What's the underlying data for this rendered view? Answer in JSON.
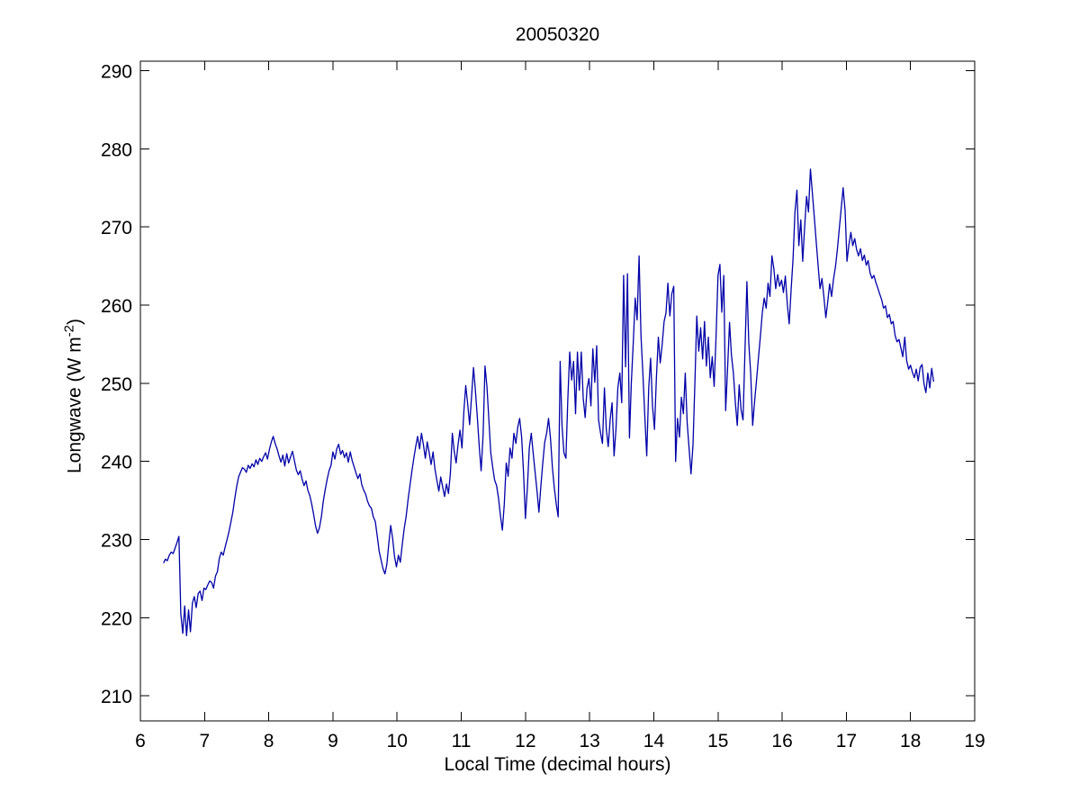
{
  "figure": {
    "background": "#ffffff",
    "axis_color": "#000000"
  },
  "chart_data": {
    "type": "line",
    "title": "20050320",
    "xlabel": "Local Time (decimal hours)",
    "ylabel": "Longwave (W m^-2)",
    "ylabel_parts": {
      "main": "Longwave (W m",
      "sup": "-2",
      "end": ")"
    },
    "xlim": [
      6,
      19
    ],
    "ylim": [
      206.8,
      291.2
    ],
    "xticks": [
      6,
      7,
      8,
      9,
      10,
      11,
      12,
      13,
      14,
      15,
      16,
      17,
      18,
      19
    ],
    "yticks": [
      210,
      220,
      230,
      240,
      250,
      260,
      270,
      280,
      290
    ],
    "grid": false,
    "legend": null,
    "line_color": "#0000A8",
    "series": [
      {
        "name": "longwave",
        "x0": 6.36,
        "dx": 0.03,
        "values": [
          227.0,
          227.5,
          227.3,
          228.0,
          228.4,
          228.2,
          228.9,
          229.6,
          230.4,
          220.5,
          218.0,
          221.5,
          217.7,
          221.0,
          218.2,
          221.9,
          222.7,
          221.3,
          223.1,
          223.4,
          222.2,
          223.8,
          223.6,
          224.2,
          224.7,
          224.5,
          223.8,
          225.3,
          225.9,
          227.6,
          228.4,
          228.0,
          229.0,
          230.0,
          231.0,
          232.2,
          233.5,
          235.2,
          236.8,
          238.0,
          238.6,
          239.2,
          239.0,
          238.6,
          239.5,
          239.1,
          239.7,
          239.3,
          240.2,
          239.6,
          240.4,
          240.0,
          240.6,
          241.1,
          240.3,
          241.5,
          242.5,
          243.2,
          242.3,
          241.6,
          240.7,
          239.9,
          240.8,
          239.4,
          241.0,
          239.8,
          240.6,
          241.3,
          240.1,
          238.9,
          238.3,
          238.8,
          237.7,
          236.9,
          237.5,
          236.3,
          235.6,
          234.5,
          233.2,
          231.7,
          230.8,
          231.5,
          232.9,
          234.9,
          236.4,
          237.7,
          238.8,
          239.5,
          241.2,
          240.3,
          241.6,
          242.2,
          240.9,
          241.4,
          240.5,
          241.1,
          239.9,
          241.2,
          240.1,
          239.3,
          238.5,
          237.8,
          238.4,
          237.0,
          236.3,
          235.8,
          234.9,
          234.3,
          234.0,
          232.9,
          232.3,
          230.5,
          228.5,
          227.4,
          226.3,
          225.6,
          226.8,
          229.5,
          231.8,
          230.2,
          227.8,
          226.5,
          228.0,
          227.1,
          229.3,
          231.4,
          232.9,
          235.1,
          236.9,
          238.7,
          240.4,
          241.9,
          243.2,
          241.6,
          243.6,
          242.1,
          240.4,
          242.5,
          241.1,
          239.6,
          241.2,
          239.0,
          237.6,
          236.2,
          238.0,
          236.7,
          235.5,
          237.1,
          235.9,
          238.4,
          243.6,
          241.3,
          239.8,
          242.2,
          244.0,
          241.7,
          246.4,
          249.7,
          247.3,
          244.7,
          248.2,
          252.0,
          249.1,
          245.6,
          241.9,
          238.8,
          243.4,
          252.2,
          249.5,
          245.3,
          241.1,
          239.2,
          237.6,
          236.9,
          235.3,
          233.1,
          231.2,
          234.5,
          239.8,
          238.1,
          241.7,
          240.4,
          243.6,
          242.3,
          244.4,
          245.5,
          243.1,
          238.6,
          232.7,
          236.7,
          241.7,
          243.6,
          241.1,
          238.7,
          236.2,
          233.5,
          236.9,
          239.8,
          242.4,
          243.6,
          245.5,
          242.9,
          239.2,
          236.6,
          234.5,
          232.9,
          252.8,
          244.5,
          241.1,
          240.4,
          247.9,
          254.0,
          250.4,
          252.8,
          246.1,
          254.0,
          249.1,
          254.0,
          248.1,
          245.6,
          249.4,
          250.6,
          247.1,
          254.4,
          250.1,
          254.8,
          245.3,
          243.6,
          242.3,
          249.4,
          244.1,
          241.9,
          245.4,
          247.5,
          240.7,
          244.1,
          249.4,
          251.3,
          247.5,
          263.8,
          252.1,
          264.0,
          243.0,
          250.1,
          255.1,
          260.9,
          258.1,
          266.3,
          256.1,
          251.3,
          245.7,
          240.7,
          249.4,
          253.2,
          247.1,
          244.1,
          250.6,
          255.9,
          252.6,
          254.9,
          257.9,
          259.0,
          262.8,
          258.6,
          261.4,
          262.4,
          240.0,
          245.5,
          243.1,
          248.2,
          246.1,
          251.3,
          245.0,
          241.6,
          238.4,
          242.1,
          250.0,
          258.6,
          254.1,
          257.1,
          253.1,
          257.9,
          252.2,
          255.9,
          250.7,
          253.4,
          249.6,
          255.9,
          263.8,
          265.2,
          259.1,
          263.8,
          246.5,
          252.1,
          257.8,
          253.6,
          251.3,
          247.6,
          244.6,
          249.8,
          246.6,
          245.3,
          253.9,
          263.0,
          255.1,
          251.3,
          244.6,
          247.6,
          250.4,
          253.2,
          255.9,
          259.0,
          260.9,
          259.6,
          262.8,
          261.1,
          266.3,
          264.7,
          262.1,
          263.9,
          262.4,
          263.2,
          261.6,
          263.7,
          260.1,
          257.6,
          262.1,
          266.0,
          271.9,
          274.7,
          267.6,
          270.9,
          265.6,
          269.9,
          273.9,
          271.9,
          277.4,
          274.4,
          271.4,
          268.1,
          265.1,
          262.1,
          263.4,
          261.1,
          258.4,
          260.4,
          262.7,
          261.1,
          263.3,
          264.9,
          267.1,
          269.7,
          272.4,
          275.0,
          272.1,
          265.6,
          267.7,
          269.3,
          267.6,
          268.5,
          267.1,
          266.3,
          267.2,
          265.7,
          266.4,
          265.1,
          265.7,
          264.1,
          263.4,
          263.8,
          262.9,
          262.2,
          261.4,
          260.7,
          259.6,
          259.9,
          258.4,
          258.8,
          257.6,
          257.9,
          256.1,
          255.3,
          255.6,
          254.5,
          253.4,
          255.9,
          252.9,
          251.8,
          252.3,
          251.4,
          250.7,
          251.8,
          250.3,
          252.0,
          252.4,
          249.9,
          248.8,
          251.3,
          249.4,
          251.9,
          250.2
        ]
      }
    ]
  }
}
